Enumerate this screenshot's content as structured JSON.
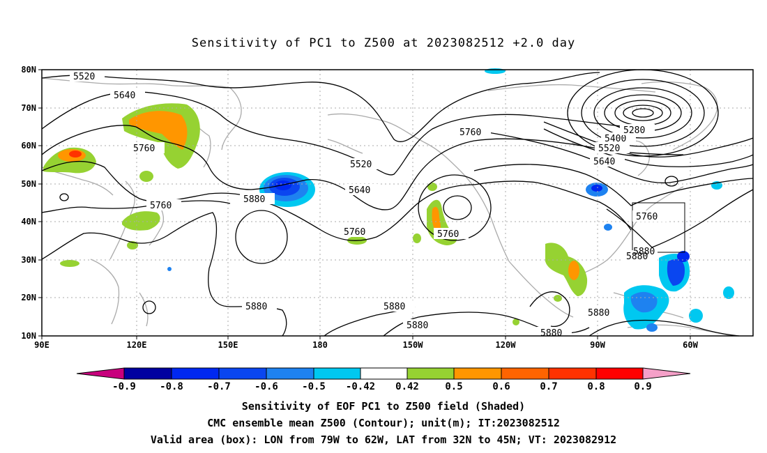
{
  "title": "Sensitivity of PC1 to Z500 at 2023082512 +2.0 day",
  "axes": {
    "lat_labels": [
      "80N",
      "70N",
      "60N",
      "50N",
      "40N",
      "30N",
      "20N",
      "10N"
    ],
    "lon_labels": [
      "90E",
      "120E",
      "150E",
      "180",
      "150W",
      "120W",
      "90W",
      "60W"
    ]
  },
  "contour_labels": [
    "5520",
    "5640",
    "5760",
    "5880",
    "5520",
    "5640",
    "5760",
    "5760",
    "5760",
    "5640",
    "5520",
    "5400",
    "5280",
    "5760",
    "5880",
    "5880",
    "5880",
    "5880",
    "5880",
    "5880",
    "5760",
    "5880"
  ],
  "colorbar": {
    "labels": [
      "-0.9",
      "-0.8",
      "-0.7",
      "-0.6",
      "-0.5",
      "-0.42",
      "0.42",
      "0.5",
      "0.6",
      "0.7",
      "0.8",
      "0.9"
    ],
    "colors": [
      "#c8007d",
      "#0000a0",
      "#0028f0",
      "#0a46f0",
      "#1e82f0",
      "#00c8f0",
      "#ffffff",
      "#96d232",
      "#ff9600",
      "#ff6400",
      "#ff3200",
      "#ff0000",
      "#f5a0c8"
    ]
  },
  "captions": {
    "line1": "Sensitivity of EOF PC1 to Z500 field (Shaded)",
    "line2": "CMC ensemble mean Z500 (Contour); unit(m); IT:2023082512",
    "line3": "Valid area (box): LON from 79W to 62W, LAT from 32N to 45N; VT: 2023082912"
  },
  "colors": {
    "coastline": "#aaaaaa",
    "contour": "#000000",
    "grid": "#aaaaaa",
    "positive_0_5": "#96d232",
    "positive_0_6": "#ff9600",
    "positive_0_7": "#ff6400",
    "positive_0_8": "#ff3200",
    "negative_0_42": "#00c8f0",
    "negative_0_5": "#1e82f0",
    "negative_0_6": "#0a46f0",
    "negative_0_7": "#0028f0"
  }
}
